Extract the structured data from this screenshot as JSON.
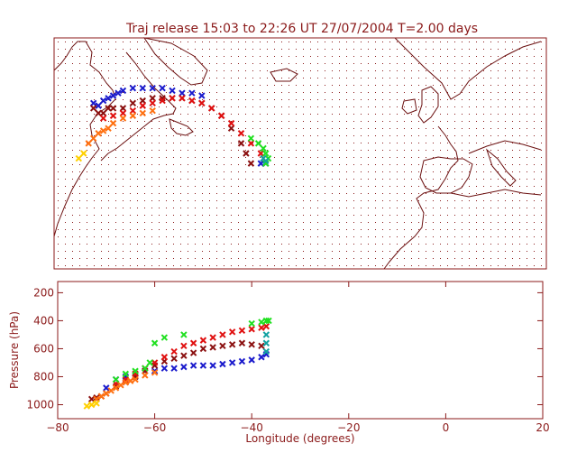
{
  "title": "Traj release 15:03 to 22:26 UT 27/07/2004     T=2.00 days",
  "colors": {
    "axis": "#8b1a1a",
    "coast": "#6b1010",
    "grid": "#8b1a1a"
  },
  "chart_data": [
    {
      "type": "scatter",
      "panel": "map",
      "title": "Traj release 15:03 to 22:26 UT 27/07/2004     T=2.00 days",
      "xlim": [
        -80,
        20
      ],
      "ylim": [
        25,
        71
      ],
      "grid": true,
      "series": [
        {
          "color": "#1a1acc",
          "marker": "x",
          "x": [
            -72,
            -71,
            -70,
            -69,
            -68,
            -67,
            -66,
            -64,
            -62,
            -60,
            -58,
            -56,
            -54,
            -52,
            -50,
            -38,
            -37
          ],
          "y": [
            58,
            57.5,
            58.5,
            59,
            59.5,
            60,
            60.5,
            61,
            61,
            61,
            61,
            60.5,
            60,
            60,
            59.5,
            46,
            46
          ]
        },
        {
          "color": "#8b1010",
          "marker": "x",
          "x": [
            -72,
            -71,
            -70,
            -69,
            -68,
            -66,
            -64,
            -62,
            -60,
            -58,
            -56,
            -54,
            -52,
            -50,
            -48,
            -46,
            -44,
            -42,
            -41,
            -40
          ],
          "y": [
            57,
            56,
            56,
            57,
            57,
            57,
            58,
            58.5,
            59,
            59,
            59,
            59,
            58.5,
            58,
            57,
            55.5,
            53,
            50,
            48,
            46
          ]
        },
        {
          "color": "#e01010",
          "marker": "x",
          "x": [
            -70,
            -68,
            -66,
            -64,
            -62,
            -60,
            -58,
            -56,
            -54,
            -52,
            -50,
            -48,
            -46,
            -44,
            -42,
            -40,
            -38
          ],
          "y": [
            55,
            55.5,
            56,
            56.5,
            57.5,
            58,
            58.5,
            59,
            59,
            58.5,
            58,
            57,
            55.5,
            54,
            52,
            50,
            48
          ]
        },
        {
          "color": "#ff7010",
          "marker": "x",
          "x": [
            -73,
            -72,
            -71,
            -70,
            -69,
            -68,
            -66,
            -64,
            -62,
            -60
          ],
          "y": [
            50,
            51,
            52,
            52.5,
            53,
            54,
            55,
            55.5,
            56,
            56.5
          ]
        },
        {
          "color": "#ffd000",
          "marker": "x",
          "x": [
            -75,
            -74
          ],
          "y": [
            47,
            48
          ]
        },
        {
          "color": "#20e020",
          "marker": "x",
          "x": [
            -40,
            -38.5,
            -37.5,
            -37,
            -36.5,
            -37
          ],
          "y": [
            51,
            50,
            49,
            48,
            47,
            46
          ]
        },
        {
          "color": "#10a0a0",
          "marker": "x",
          "x": [
            -37.5,
            -37
          ],
          "y": [
            47,
            46.5
          ]
        }
      ]
    },
    {
      "type": "scatter",
      "panel": "pressure",
      "xlabel": "Longitude  (degrees)",
      "ylabel": "Pressure  (hPa)",
      "xlim": [
        -80,
        20
      ],
      "ylim": [
        1100,
        120
      ],
      "xticks": [
        -80,
        -60,
        -40,
        -20,
        0,
        20
      ],
      "yticks": [
        200,
        400,
        600,
        800,
        1000
      ],
      "series": [
        {
          "color": "#1a1acc",
          "marker": "x",
          "x": [
            -72,
            -70,
            -68,
            -66,
            -64,
            -62,
            -60,
            -58,
            -56,
            -54,
            -52,
            -50,
            -48,
            -46,
            -44,
            -42,
            -40,
            -38,
            -37
          ],
          "y": [
            960,
            880,
            820,
            800,
            780,
            760,
            760,
            740,
            740,
            730,
            720,
            720,
            720,
            710,
            700,
            690,
            680,
            660,
            640
          ]
        },
        {
          "color": "#8b1010",
          "marker": "x",
          "x": [
            -73,
            -72,
            -71,
            -70,
            -68,
            -66,
            -64,
            -62,
            -60,
            -58,
            -56,
            -54,
            -52,
            -50,
            -48,
            -46,
            -44,
            -42,
            -40,
            -38
          ],
          "y": [
            960,
            950,
            940,
            920,
            870,
            840,
            800,
            760,
            720,
            690,
            670,
            650,
            630,
            600,
            590,
            580,
            570,
            560,
            570,
            580
          ]
        },
        {
          "color": "#e01010",
          "marker": "x",
          "x": [
            -68,
            -66,
            -64,
            -62,
            -60,
            -58,
            -56,
            -54,
            -52,
            -50,
            -48,
            -46,
            -44,
            -42,
            -40,
            -38,
            -37
          ],
          "y": [
            850,
            820,
            780,
            740,
            700,
            660,
            620,
            580,
            560,
            540,
            520,
            500,
            480,
            470,
            460,
            450,
            440
          ]
        },
        {
          "color": "#ff7010",
          "marker": "x",
          "x": [
            -72,
            -71,
            -70,
            -69,
            -68,
            -67,
            -66,
            -65,
            -64,
            -62,
            -60
          ],
          "y": [
            960,
            940,
            920,
            900,
            880,
            860,
            840,
            830,
            820,
            790,
            770
          ]
        },
        {
          "color": "#ffd000",
          "marker": "x",
          "x": [
            -74,
            -73,
            -72
          ],
          "y": [
            1010,
            1000,
            990
          ]
        },
        {
          "color": "#20e020",
          "marker": "x",
          "x": [
            -68,
            -66,
            -64,
            -62,
            -61,
            -60,
            -58,
            -54,
            -40,
            -38,
            -37,
            -36.5
          ],
          "y": [
            820,
            780,
            760,
            740,
            700,
            560,
            520,
            500,
            420,
            410,
            400,
            400
          ]
        },
        {
          "color": "#10a0a0",
          "marker": "x",
          "x": [
            -37,
            -37,
            -37
          ],
          "y": [
            500,
            560,
            620
          ]
        }
      ]
    }
  ]
}
